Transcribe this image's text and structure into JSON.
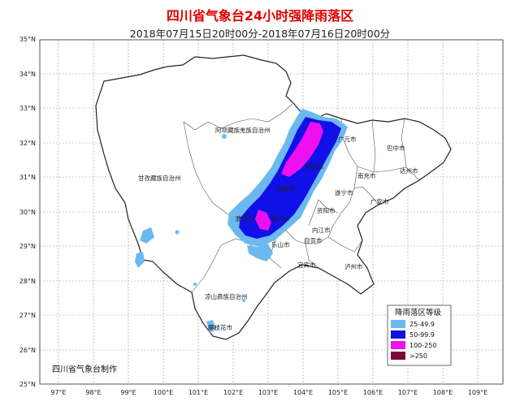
{
  "title": "四川省气象台24小时强降雨落区",
  "subtitle": "2018年07月15日20时00分-2018年07月16日20时00分",
  "credit": "四川省气象台制作",
  "lat_labels": [
    "35°N",
    "34°N",
    "33°N",
    "32°N",
    "31°N",
    "30°N",
    "29°N",
    "28°N",
    "27°N",
    "26°N",
    "25°N"
  ],
  "lon_labels": [
    "97°E",
    "98°E",
    "99°E",
    "100°E",
    "101°E",
    "102°E",
    "103°E",
    "104°E",
    "105°E",
    "106°E",
    "107°E",
    "108°E",
    "109°E"
  ],
  "regions": {
    "aba": "阿坝藏族羌族自治州",
    "ganzi": "甘孜藏族自治州",
    "liangshan": "凉山彝族自治州",
    "panzhihua": "攀枝花市",
    "guangyuan": "广元市",
    "bazhong": "巴中市",
    "nanchong": "南充市",
    "dazhou": "达州市",
    "suining": "遂宁市",
    "guang_an": "广安市",
    "ziyang": "资阳市",
    "neijiang": "内江市",
    "zigong": "自贡市",
    "leshan": "乐山市",
    "yibin": "宜宾市",
    "luzhou": "泸州市",
    "yaan": "雅安市",
    "chengdu": "成都市",
    "meishan": "眉山市",
    "mianyang": "绵阳市"
  },
  "legend": {
    "title": "降雨落区等级",
    "items": [
      {
        "label": "25-49.9",
        "color": "#6cb8f0"
      },
      {
        "label": "50-99.9",
        "color": "#1010e8"
      },
      {
        "label": "100-250",
        "color": "#ee10ee"
      },
      {
        "label": ">250",
        "color": "#7a0a3a"
      }
    ]
  }
}
